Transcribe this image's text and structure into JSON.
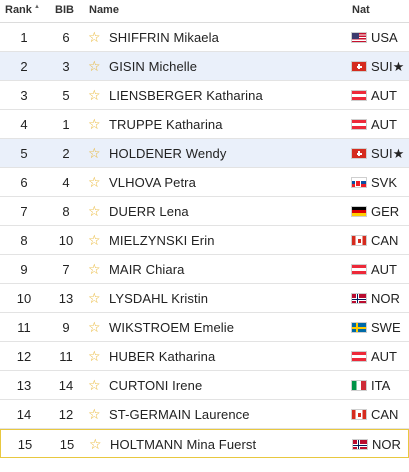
{
  "header": {
    "rank": "Rank",
    "bib": "BIB",
    "name": "Name",
    "nat": "Nat"
  },
  "colors": {
    "star": "#e8b32b",
    "selected_row": "#eaf0fa",
    "highlight_border": "#e8c840"
  },
  "rows": [
    {
      "rank": "1",
      "bib": "6",
      "name": "SHIFFRIN Mikaela",
      "nat": "USA",
      "flag": "usa",
      "selected": false
    },
    {
      "rank": "2",
      "bib": "3",
      "name": "GISIN Michelle",
      "nat": "SUI★",
      "flag": "sui",
      "selected": true
    },
    {
      "rank": "3",
      "bib": "5",
      "name": "LIENSBERGER Katharina",
      "nat": "AUT",
      "flag": "aut",
      "selected": false
    },
    {
      "rank": "4",
      "bib": "1",
      "name": "TRUPPE Katharina",
      "nat": "AUT",
      "flag": "aut",
      "selected": false
    },
    {
      "rank": "5",
      "bib": "2",
      "name": "HOLDENER Wendy",
      "nat": "SUI★",
      "flag": "sui",
      "selected": true
    },
    {
      "rank": "6",
      "bib": "4",
      "name": "VLHOVA Petra",
      "nat": "SVK",
      "flag": "svk",
      "selected": false
    },
    {
      "rank": "7",
      "bib": "8",
      "name": "DUERR Lena",
      "nat": "GER",
      "flag": "ger",
      "selected": false
    },
    {
      "rank": "8",
      "bib": "10",
      "name": "MIELZYNSKI Erin",
      "nat": "CAN",
      "flag": "can",
      "selected": false
    },
    {
      "rank": "9",
      "bib": "7",
      "name": "MAIR Chiara",
      "nat": "AUT",
      "flag": "aut",
      "selected": false
    },
    {
      "rank": "10",
      "bib": "13",
      "name": "LYSDAHL Kristin",
      "nat": "NOR",
      "flag": "nor",
      "selected": false
    },
    {
      "rank": "11",
      "bib": "9",
      "name": "WIKSTROEM Emelie",
      "nat": "SWE",
      "flag": "swe",
      "selected": false
    },
    {
      "rank": "12",
      "bib": "11",
      "name": "HUBER Katharina",
      "nat": "AUT",
      "flag": "aut",
      "selected": false
    },
    {
      "rank": "13",
      "bib": "14",
      "name": "CURTONI Irene",
      "nat": "ITA",
      "flag": "ita",
      "selected": false
    },
    {
      "rank": "14",
      "bib": "12",
      "name": "ST-GERMAIN Laurence",
      "nat": "CAN",
      "flag": "can",
      "selected": false
    },
    {
      "rank": "15",
      "bib": "15",
      "name": "HOLTMANN Mina Fuerst",
      "nat": "NOR",
      "flag": "nor",
      "selected": false
    }
  ]
}
